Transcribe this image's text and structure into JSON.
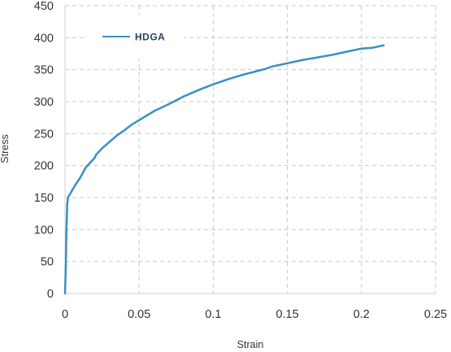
{
  "chart_data": {
    "type": "line",
    "xlabel": "Strain",
    "ylabel": "Stress",
    "xlim": [
      0,
      0.25
    ],
    "ylim": [
      0,
      450
    ],
    "x_ticks": [
      "0",
      "0.05",
      "0.1",
      "0.15",
      "0.2",
      "0.25"
    ],
    "x_tick_values": [
      0,
      0.05,
      0.1,
      0.15,
      0.2,
      0.25
    ],
    "y_ticks": [
      "0",
      "50",
      "100",
      "150",
      "200",
      "250",
      "300",
      "350",
      "400",
      "450"
    ],
    "y_tick_values": [
      0,
      50,
      100,
      150,
      200,
      250,
      300,
      350,
      400,
      450
    ],
    "grid": true,
    "legend_position": "top-left",
    "series": [
      {
        "name": "HDGA",
        "color": "#3a8fc4",
        "x": [
          0,
          0.0005,
          0.001,
          0.0015,
          0.002,
          0.004,
          0.007,
          0.01,
          0.014,
          0.018,
          0.02,
          0.021,
          0.025,
          0.03,
          0.035,
          0.04,
          0.045,
          0.05,
          0.06,
          0.07,
          0.08,
          0.09,
          0.1,
          0.11,
          0.12,
          0.13,
          0.135,
          0.14,
          0.15,
          0.16,
          0.17,
          0.18,
          0.19,
          0.2,
          0.207,
          0.215
        ],
        "y": [
          0,
          40,
          100,
          140,
          150,
          158,
          170,
          180,
          197,
          207,
          212,
          217,
          227,
          237,
          247,
          255,
          264,
          271,
          285,
          296,
          308,
          318,
          327,
          335,
          342,
          348,
          351,
          355,
          360,
          365,
          369,
          373,
          378,
          383,
          384,
          388
        ]
      }
    ]
  }
}
